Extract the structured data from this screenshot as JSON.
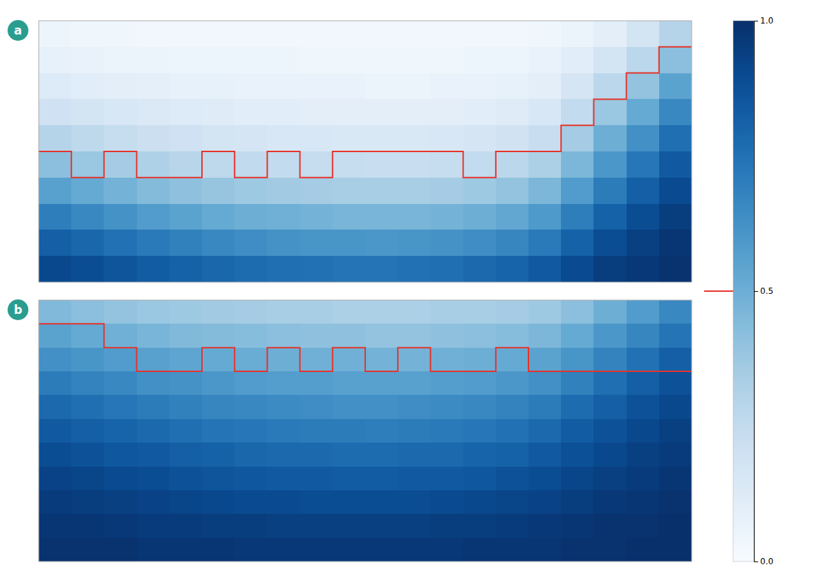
{
  "chart_data": {
    "type": "heatmap",
    "color": "Blues",
    "tick_labels": false,
    "colorbar": {
      "range": [
        0.0,
        1.0
      ],
      "ticks": [
        {
          "value": 0.0,
          "label": "0.0"
        },
        {
          "value": 0.5,
          "label": "0.5"
        },
        {
          "value": 1.0,
          "label": "1.0"
        }
      ]
    },
    "isoline_color": "#e63329",
    "isoline_level": 0.5,
    "panels": [
      {
        "title": "a",
        "title_color": "#2a9d8f",
        "xlim": [
          -0.5,
          19.5
        ],
        "ylim": [
          9.5,
          -0.5
        ],
        "values": [
          [
            0.05,
            0.04,
            0.04,
            0.03,
            0.03,
            0.03,
            0.03,
            0.03,
            0.03,
            0.03,
            0.03,
            0.03,
            0.03,
            0.03,
            0.03,
            0.04,
            0.06,
            0.1,
            0.18,
            0.3
          ],
          [
            0.08,
            0.07,
            0.06,
            0.06,
            0.05,
            0.05,
            0.05,
            0.05,
            0.04,
            0.04,
            0.04,
            0.04,
            0.04,
            0.05,
            0.05,
            0.07,
            0.11,
            0.18,
            0.28,
            0.42
          ],
          [
            0.13,
            0.11,
            0.1,
            0.09,
            0.08,
            0.08,
            0.07,
            0.07,
            0.07,
            0.07,
            0.06,
            0.06,
            0.07,
            0.07,
            0.08,
            0.1,
            0.17,
            0.28,
            0.4,
            0.55
          ],
          [
            0.2,
            0.18,
            0.16,
            0.14,
            0.13,
            0.12,
            0.11,
            0.11,
            0.1,
            0.1,
            0.1,
            0.1,
            0.1,
            0.11,
            0.12,
            0.16,
            0.25,
            0.38,
            0.52,
            0.66
          ],
          [
            0.3,
            0.27,
            0.24,
            0.22,
            0.2,
            0.18,
            0.17,
            0.16,
            0.16,
            0.15,
            0.15,
            0.15,
            0.16,
            0.17,
            0.19,
            0.23,
            0.35,
            0.5,
            0.63,
            0.76
          ],
          [
            0.42,
            0.38,
            0.35,
            0.32,
            0.29,
            0.27,
            0.26,
            0.25,
            0.24,
            0.24,
            0.23,
            0.23,
            0.24,
            0.25,
            0.28,
            0.33,
            0.46,
            0.6,
            0.73,
            0.84
          ],
          [
            0.56,
            0.52,
            0.48,
            0.44,
            0.41,
            0.39,
            0.37,
            0.36,
            0.35,
            0.34,
            0.34,
            0.34,
            0.35,
            0.37,
            0.4,
            0.46,
            0.58,
            0.71,
            0.82,
            0.9
          ],
          [
            0.7,
            0.66,
            0.62,
            0.58,
            0.55,
            0.52,
            0.5,
            0.49,
            0.48,
            0.47,
            0.47,
            0.47,
            0.48,
            0.5,
            0.53,
            0.59,
            0.7,
            0.81,
            0.89,
            0.95
          ],
          [
            0.82,
            0.79,
            0.75,
            0.72,
            0.69,
            0.66,
            0.64,
            0.62,
            0.61,
            0.61,
            0.6,
            0.61,
            0.62,
            0.64,
            0.67,
            0.72,
            0.81,
            0.89,
            0.94,
            0.98
          ],
          [
            0.91,
            0.89,
            0.86,
            0.83,
            0.81,
            0.79,
            0.77,
            0.76,
            0.75,
            0.74,
            0.74,
            0.75,
            0.76,
            0.78,
            0.8,
            0.84,
            0.9,
            0.95,
            0.97,
            0.99
          ]
        ],
        "isoline": {
          "x": [
            -0.5,
            0.5,
            0.5,
            1.5,
            1.5,
            2.5,
            2.5,
            3.5,
            3.5,
            4.5,
            4.5,
            5.5,
            5.5,
            6.5,
            6.5,
            7.5,
            7.5,
            8.5,
            8.5,
            9.5,
            9.5,
            10.5,
            10.5,
            11.5,
            11.5,
            12.5,
            12.5,
            13.5,
            13.5,
            14.5,
            14.5,
            15.5,
            15.5,
            16.5,
            16.5,
            17.5,
            17.5,
            18.5,
            18.5,
            19.5
          ],
          "y": [
            4.5,
            4.5,
            5.5,
            5.5,
            4.5,
            4.5,
            5.5,
            5.5,
            5.5,
            5.5,
            4.5,
            4.5,
            5.5,
            5.5,
            4.5,
            4.5,
            5.5,
            5.5,
            4.5,
            4.5,
            4.5,
            4.5,
            4.5,
            4.5,
            4.5,
            4.5,
            5.5,
            5.5,
            4.5,
            4.5,
            4.5,
            4.5,
            3.5,
            3.5,
            2.5,
            2.5,
            1.5,
            1.5,
            0.5,
            0.5
          ]
        }
      },
      {
        "title": "b",
        "title_color": "#2a9d8f",
        "xlim": [
          -0.5,
          19.5
        ],
        "ylim": [
          10.5,
          -0.5
        ],
        "values": [
          [
            0.45,
            0.42,
            0.4,
            0.38,
            0.37,
            0.36,
            0.35,
            0.34,
            0.34,
            0.33,
            0.33,
            0.33,
            0.34,
            0.34,
            0.35,
            0.37,
            0.42,
            0.5,
            0.58,
            0.66
          ],
          [
            0.55,
            0.52,
            0.49,
            0.47,
            0.45,
            0.44,
            0.43,
            0.42,
            0.41,
            0.41,
            0.4,
            0.4,
            0.41,
            0.42,
            0.43,
            0.46,
            0.52,
            0.6,
            0.67,
            0.74
          ],
          [
            0.63,
            0.61,
            0.58,
            0.56,
            0.54,
            0.52,
            0.51,
            0.5,
            0.49,
            0.49,
            0.48,
            0.48,
            0.49,
            0.5,
            0.52,
            0.55,
            0.61,
            0.68,
            0.75,
            0.82
          ],
          [
            0.71,
            0.68,
            0.66,
            0.63,
            0.62,
            0.6,
            0.58,
            0.57,
            0.57,
            0.56,
            0.56,
            0.56,
            0.57,
            0.58,
            0.6,
            0.63,
            0.69,
            0.76,
            0.82,
            0.87
          ],
          [
            0.78,
            0.76,
            0.73,
            0.71,
            0.69,
            0.67,
            0.66,
            0.65,
            0.64,
            0.63,
            0.63,
            0.64,
            0.65,
            0.66,
            0.68,
            0.71,
            0.77,
            0.82,
            0.87,
            0.91
          ],
          [
            0.84,
            0.82,
            0.8,
            0.78,
            0.76,
            0.74,
            0.73,
            0.72,
            0.71,
            0.71,
            0.7,
            0.71,
            0.72,
            0.73,
            0.75,
            0.78,
            0.83,
            0.87,
            0.91,
            0.94
          ],
          [
            0.89,
            0.87,
            0.85,
            0.84,
            0.82,
            0.81,
            0.79,
            0.78,
            0.78,
            0.77,
            0.77,
            0.78,
            0.78,
            0.8,
            0.81,
            0.84,
            0.88,
            0.91,
            0.94,
            0.96
          ],
          [
            0.93,
            0.92,
            0.9,
            0.89,
            0.87,
            0.86,
            0.85,
            0.84,
            0.84,
            0.83,
            0.83,
            0.84,
            0.84,
            0.85,
            0.87,
            0.89,
            0.92,
            0.94,
            0.96,
            0.98
          ],
          [
            0.96,
            0.95,
            0.94,
            0.93,
            0.92,
            0.91,
            0.9,
            0.9,
            0.89,
            0.89,
            0.89,
            0.89,
            0.9,
            0.91,
            0.92,
            0.93,
            0.95,
            0.97,
            0.98,
            0.99
          ],
          [
            0.98,
            0.98,
            0.97,
            0.96,
            0.96,
            0.95,
            0.95,
            0.94,
            0.94,
            0.94,
            0.94,
            0.94,
            0.95,
            0.95,
            0.96,
            0.97,
            0.98,
            0.99,
            0.99,
            1.0
          ],
          [
            0.99,
            0.99,
            0.99,
            0.98,
            0.98,
            0.98,
            0.97,
            0.97,
            0.97,
            0.97,
            0.97,
            0.97,
            0.97,
            0.98,
            0.98,
            0.98,
            0.99,
            0.99,
            1.0,
            1.0
          ]
        ],
        "isoline": {
          "x": [
            -0.5,
            0.5,
            0.5,
            1.5,
            1.5,
            2.5,
            2.5,
            3.5,
            3.5,
            4.5,
            4.5,
            5.5,
            5.5,
            6.5,
            6.5,
            7.5,
            7.5,
            8.5,
            8.5,
            9.5,
            9.5,
            10.5,
            10.5,
            11.5,
            11.5,
            12.5,
            12.5,
            13.5,
            13.5,
            14.5,
            14.5,
            15.5,
            15.5,
            16.5,
            16.5,
            17.5,
            17.5,
            18.5,
            18.5,
            19.5
          ],
          "y": [
            0.5,
            0.5,
            0.5,
            0.5,
            1.5,
            1.5,
            2.5,
            2.5,
            2.5,
            2.5,
            1.5,
            1.5,
            2.5,
            2.5,
            1.5,
            1.5,
            2.5,
            2.5,
            1.5,
            1.5,
            2.5,
            2.5,
            1.5,
            1.5,
            2.5,
            2.5,
            2.5,
            2.5,
            1.5,
            1.5,
            2.5,
            2.5,
            2.5,
            2.5,
            2.5,
            2.5,
            2.5,
            2.5,
            2.5,
            2.5
          ]
        }
      }
    ]
  }
}
